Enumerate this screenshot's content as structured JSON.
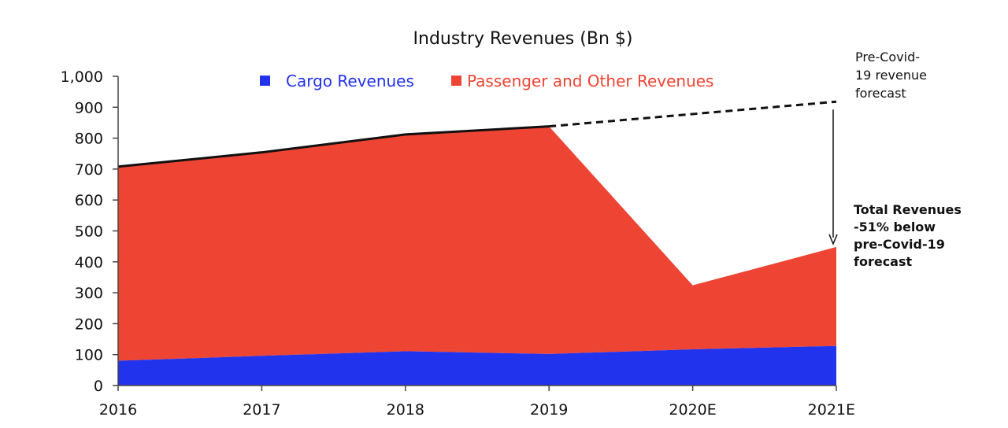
{
  "chart_data": {
    "type": "area",
    "title": "Industry Revenues (Bn $)",
    "categories": [
      "2016",
      "2017",
      "2018",
      "2019",
      "2020E",
      "2021E"
    ],
    "series": [
      {
        "name": "Cargo Revenues",
        "color": "#2233ee",
        "values": [
          80,
          96,
          111,
          102,
          117,
          128
        ]
      },
      {
        "name": "Passenger and Other Revenues",
        "color": "#ee4433",
        "values": [
          628,
          658,
          701,
          736,
          207,
          320
        ]
      }
    ],
    "totals": [
      708,
      754,
      812,
      838,
      324,
      448
    ],
    "forecast": {
      "label": "Pre-Covid-19 revenue forecast",
      "from": "2019",
      "from_value": 838,
      "to": "2021E",
      "to_value": 918
    },
    "yticks": [
      "0",
      "100",
      "200",
      "300",
      "400",
      "500",
      "600",
      "700",
      "800",
      "900",
      "1,000"
    ],
    "ylim": [
      0,
      1000
    ],
    "legend_position": "top",
    "grid": false
  },
  "annotations": {
    "forecast_lines": [
      "Pre-Covid-",
      "19 revenue",
      "forecast"
    ],
    "total_lines": [
      "Total Revenues",
      "-51% below",
      "pre-Covid-19",
      "forecast"
    ]
  }
}
